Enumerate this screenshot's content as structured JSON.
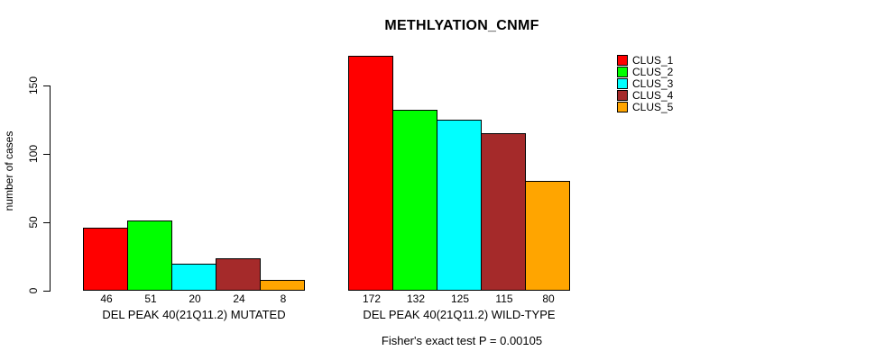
{
  "chart_data": {
    "type": "bar",
    "title": "METHLYATION_CNMF",
    "xlabel": "",
    "ylabel": "number of cases",
    "ylim": [
      0,
      175
    ],
    "yticks": [
      0,
      50,
      100,
      150
    ],
    "grid": false,
    "legend_position": "top-right",
    "bar_value_labels": true,
    "categories": [
      "DEL PEAK 40(21Q11.2) MUTATED",
      "DEL PEAK 40(21Q11.2) WILD-TYPE"
    ],
    "series": [
      {
        "name": "CLUS_1",
        "color": "#ff0000",
        "values": [
          46,
          172
        ]
      },
      {
        "name": "CLUS_2",
        "color": "#00ff00",
        "values": [
          51,
          132
        ]
      },
      {
        "name": "CLUS_3",
        "color": "#00ffff",
        "values": [
          20,
          125
        ]
      },
      {
        "name": "CLUS_4",
        "color": "#a52a2a",
        "values": [
          24,
          115
        ]
      },
      {
        "name": "CLUS_5",
        "color": "#ffa500",
        "values": [
          8,
          80
        ]
      }
    ],
    "annotation": "Fisher's exact test P = 0.00105"
  }
}
